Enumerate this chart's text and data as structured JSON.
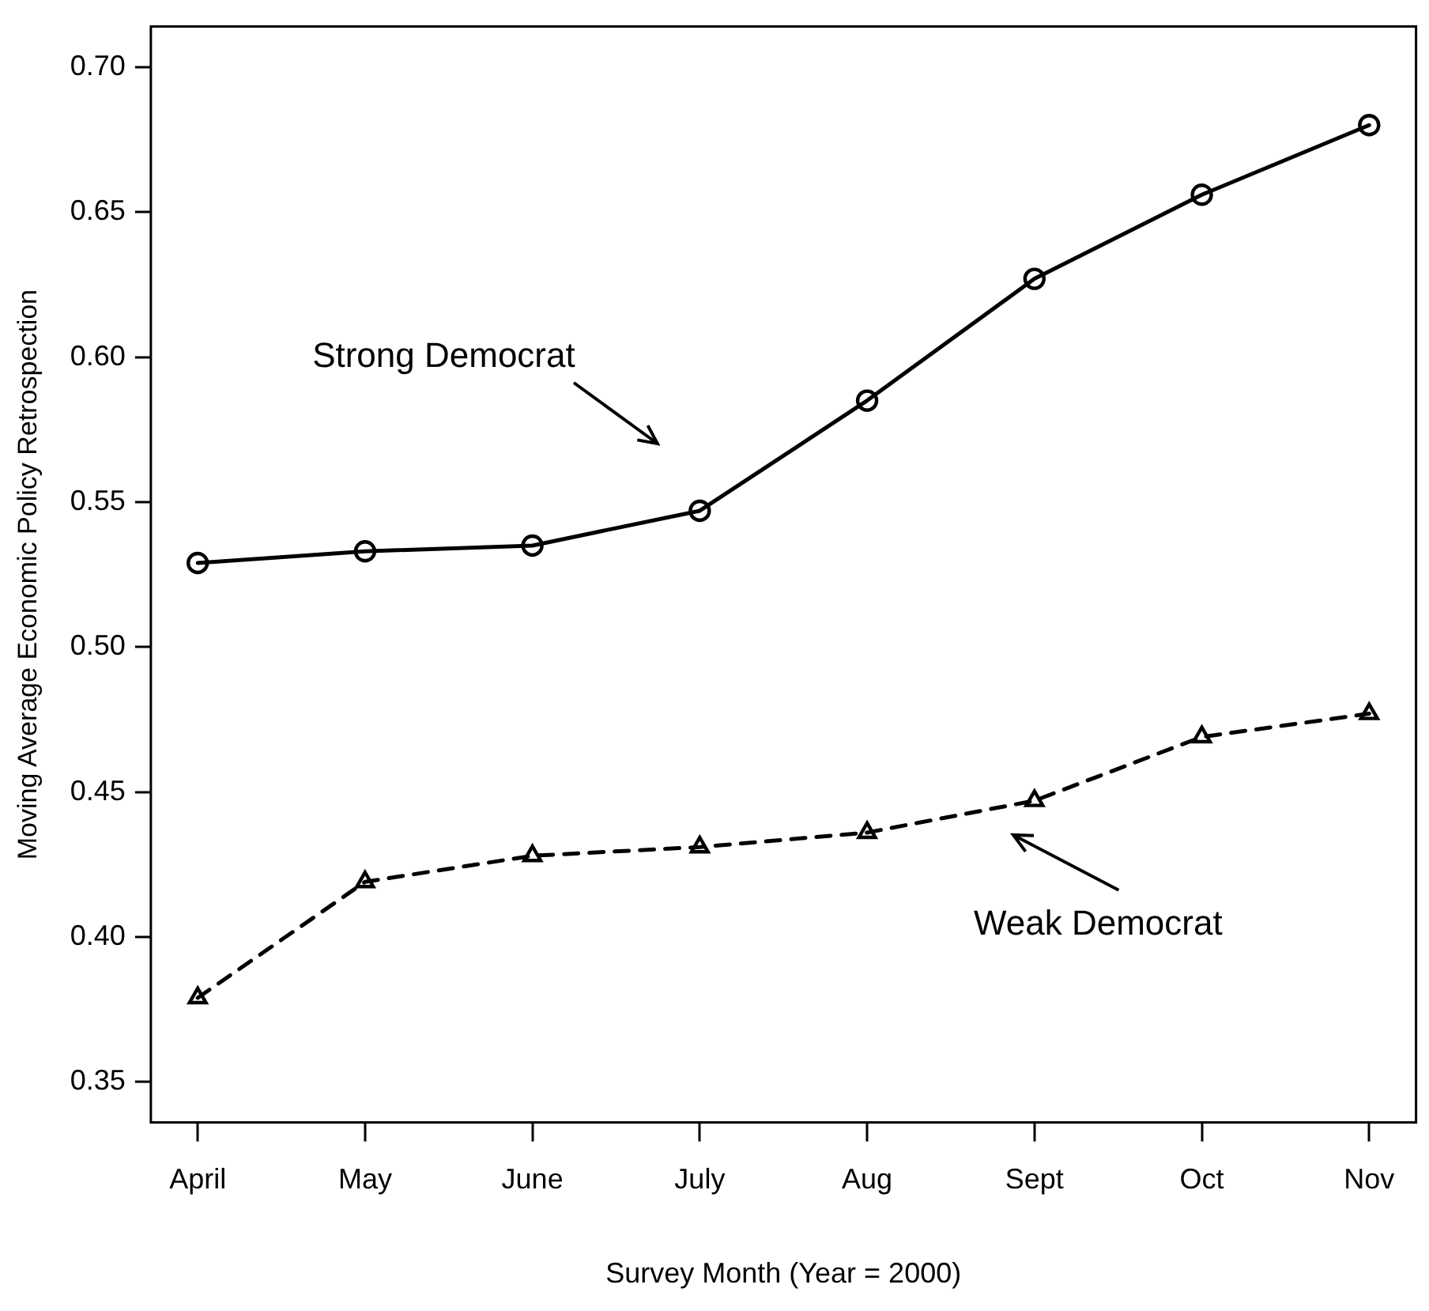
{
  "chart_data": {
    "type": "line",
    "xlabel": "Survey Month (Year = 2000)",
    "ylabel": "Moving Average Economic Policy Retrospection",
    "categories": [
      "April",
      "May",
      "June",
      "July",
      "Aug",
      "Sept",
      "Oct",
      "Nov"
    ],
    "series": [
      {
        "color": "#000000",
        "marker": "circle",
        "line_style": "solid",
        "values": [
          0.529,
          0.533,
          0.535,
          0.547,
          0.585,
          0.627,
          0.656,
          0.68
        ]
      },
      {
        "color": "#000000",
        "marker": "triangle",
        "line_style": "dashed",
        "values": [
          0.379,
          0.419,
          0.428,
          0.431,
          0.436,
          0.447,
          0.469,
          0.477
        ]
      }
    ],
    "annotations": [
      "Strong Democrat",
      "Weak Democrat"
    ],
    "ylim": [
      0.336,
      0.714
    ],
    "yticks": [
      {
        "value": 0.35,
        "label": "0.35"
      },
      {
        "value": 0.4,
        "label": "0.40"
      },
      {
        "value": 0.45,
        "label": "0.45"
      },
      {
        "value": 0.5,
        "label": "0.50"
      },
      {
        "value": 0.55,
        "label": "0.55"
      },
      {
        "value": 0.6,
        "label": "0.60"
      },
      {
        "value": 0.65,
        "label": "0.65"
      },
      {
        "value": 0.7,
        "label": "0.70"
      }
    ],
    "grid": false
  }
}
